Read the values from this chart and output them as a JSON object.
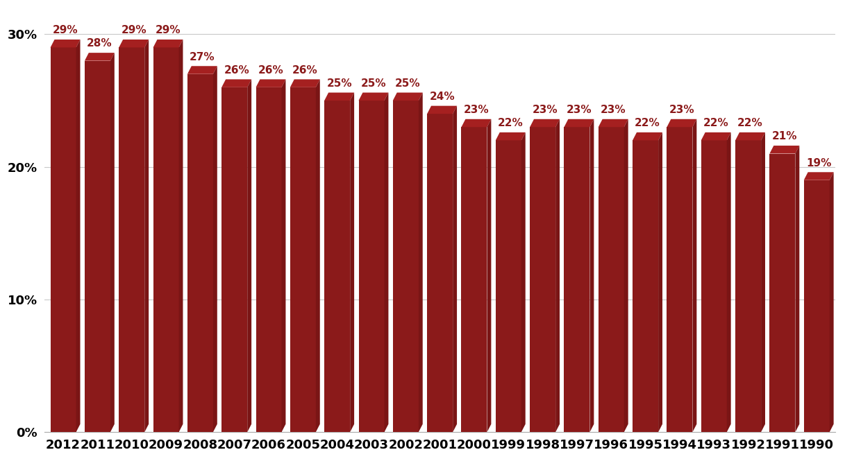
{
  "years": [
    2012,
    2011,
    2010,
    2009,
    2008,
    2007,
    2006,
    2005,
    2004,
    2003,
    2002,
    2001,
    2000,
    1999,
    1998,
    1997,
    1996,
    1995,
    1994,
    1993,
    1992,
    1991,
    1990
  ],
  "values": [
    29,
    28,
    29,
    29,
    27,
    26,
    26,
    26,
    25,
    25,
    25,
    24,
    23,
    22,
    23,
    23,
    23,
    22,
    23,
    22,
    22,
    21,
    19
  ],
  "bar_color_front": "#8B1A1A",
  "bar_color_top": "#A52020",
  "bar_color_right": "#7A1515",
  "ylim": [
    0,
    32
  ],
  "yticks": [
    0,
    10,
    20,
    30
  ],
  "ytick_labels": [
    "0%",
    "10%",
    "20%",
    "30%"
  ],
  "label_color": "#8B1A1A",
  "label_fontsize": 11,
  "tick_fontsize": 13,
  "background_color": "#ffffff",
  "grid_color": "#c8c8c8"
}
